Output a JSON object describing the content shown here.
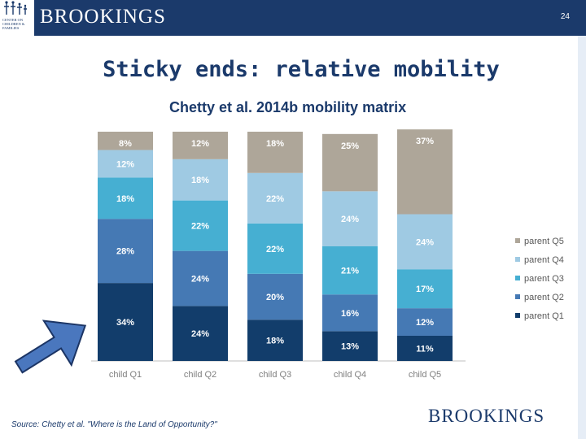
{
  "header": {
    "logo_text": "CENTER ON\nCHILDREN &\nFAMILIES",
    "brand": "BROOKINGS",
    "page_number": "24"
  },
  "slide": {
    "title": "Sticky ends: relative mobility",
    "source": "Source: Chetty et al. \"Where is the Land of Opportunity?\"",
    "footer_brand": "BROOKINGS"
  },
  "colors": {
    "header_bg": "#1b3a6b",
    "parent_q1": "#123d6b",
    "parent_q2": "#4579b4",
    "parent_q3": "#46afd2",
    "parent_q4": "#9fcae3",
    "parent_q5": "#aea699",
    "arrow_fill": "#4a77be",
    "arrow_stroke": "#1c3565"
  },
  "chart_data": {
    "type": "bar",
    "stacked": true,
    "title": "Chetty et al. 2014b mobility matrix",
    "categories": [
      "child Q1",
      "child Q2",
      "child Q3",
      "child Q4",
      "child Q5"
    ],
    "series": [
      {
        "name": "parent Q1",
        "values": [
          34,
          24,
          18,
          13,
          11
        ],
        "labels": [
          "34%",
          "24%",
          "18%",
          "13%",
          "11%"
        ]
      },
      {
        "name": "parent Q2",
        "values": [
          28,
          24,
          20,
          16,
          12
        ],
        "labels": [
          "28%",
          "24%",
          "20%",
          "16%",
          "12%"
        ]
      },
      {
        "name": "parent Q3",
        "values": [
          18,
          22,
          22,
          21,
          17
        ],
        "labels": [
          "18%",
          "22%",
          "22%",
          "21%",
          "17%"
        ]
      },
      {
        "name": "parent Q4",
        "values": [
          12,
          18,
          22,
          24,
          24
        ],
        "labels": [
          "12%",
          "18%",
          "22%",
          "24%",
          "24%"
        ]
      },
      {
        "name": "parent Q5",
        "values": [
          8,
          12,
          18,
          25,
          37
        ],
        "labels": [
          "8%",
          "12%",
          "18%",
          "25%",
          "37%"
        ]
      }
    ],
    "legend": [
      "parent Q5",
      "parent Q4",
      "parent Q3",
      "parent Q2",
      "parent Q1"
    ],
    "legend_position": "right",
    "ylim": [
      0,
      100
    ],
    "xlabel": "",
    "ylabel": ""
  }
}
